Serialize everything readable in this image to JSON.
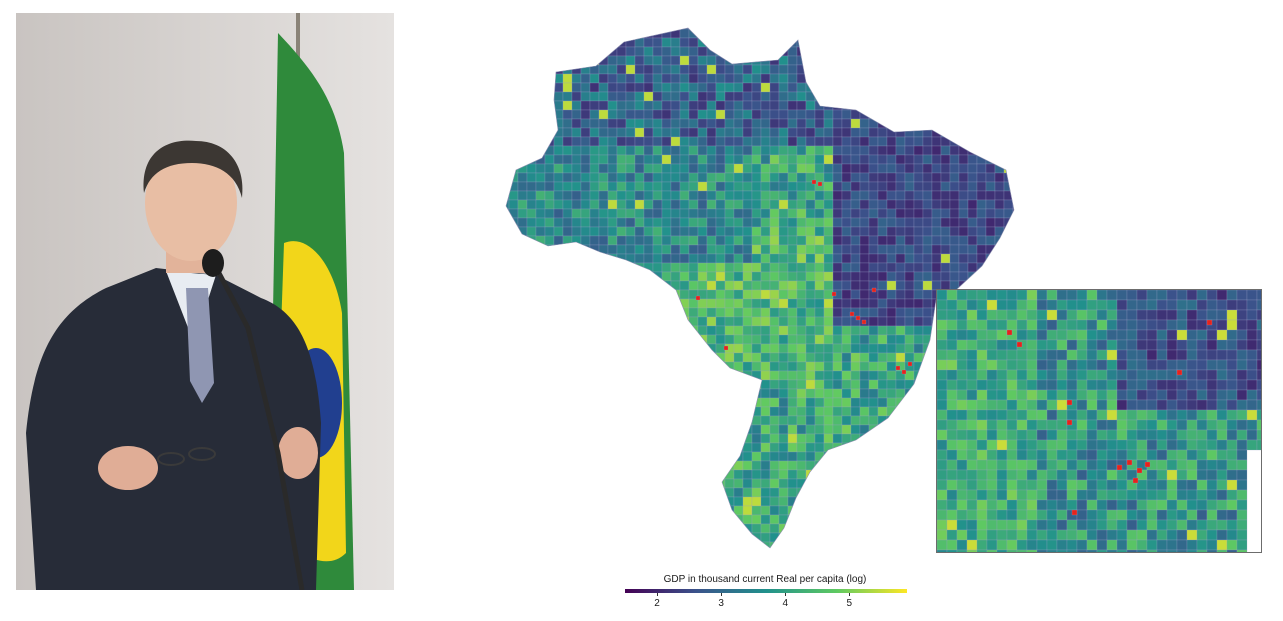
{
  "legend": {
    "title": "GDP in thousand current Real per capita (log)",
    "ticks": [
      "2",
      "3",
      "4",
      "5"
    ],
    "range": [
      1.5,
      5.9
    ],
    "colors": [
      "#440154",
      "#3b528b",
      "#21918c",
      "#5ec962",
      "#fde725"
    ]
  },
  "highlight_color": "#e8221b",
  "flag_colors": {
    "green": "#2f8a3b",
    "yellow": "#f2d61a",
    "blue": "#213f8f"
  }
}
